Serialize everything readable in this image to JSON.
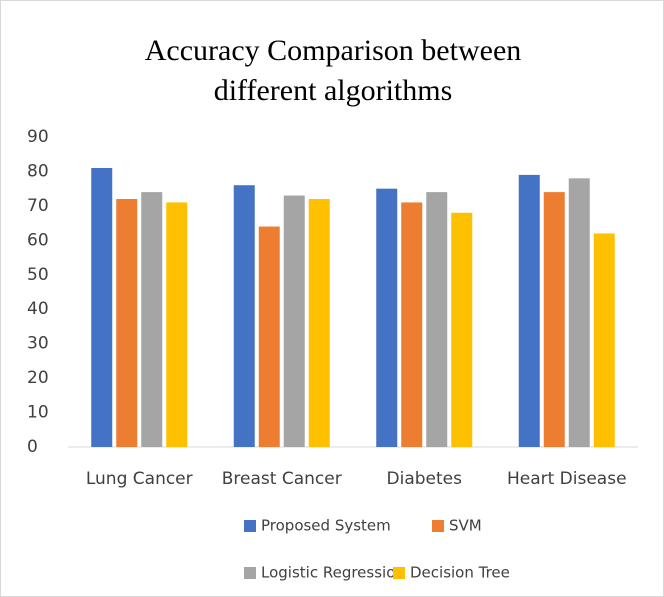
{
  "chart_data": {
    "type": "bar",
    "title": "Accuracy Comparison between different algorithms",
    "categories": [
      "Lung Cancer",
      "Breast Cancer",
      "Diabetes",
      "Heart Disease"
    ],
    "series": [
      {
        "name": "Proposed System",
        "color": "#4472c4",
        "values": [
          81,
          76,
          75,
          79
        ]
      },
      {
        "name": "SVM",
        "color": "#ed7d31",
        "values": [
          72,
          64,
          71,
          74
        ]
      },
      {
        "name": "Logistic Regression",
        "color": "#a5a5a5",
        "values": [
          74,
          73,
          74,
          78
        ]
      },
      {
        "name": "Decision Tree",
        "color": "#ffc000",
        "values": [
          71,
          72,
          68,
          62
        ]
      }
    ],
    "ylim": [
      0,
      90
    ],
    "yticks": [
      0,
      10,
      20,
      30,
      40,
      50,
      60,
      70,
      80,
      90
    ],
    "grid": false,
    "legend": "bottom"
  }
}
